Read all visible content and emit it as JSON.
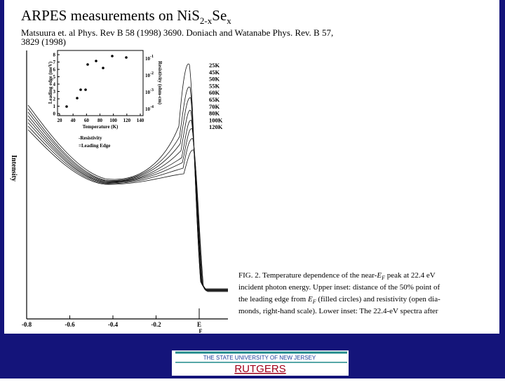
{
  "title": {
    "main": "ARPES measurements on Ni",
    "s": "S",
    "sub1": "2-x",
    "se": "Se",
    "sub2": "x"
  },
  "citation": {
    "lines": [
      "Matsuura et. al Phys. Rev B 58 (1998) 3690. Doniach and Watanabe Phys. Rev. B 57,",
      "3829 (1998)"
    ]
  },
  "figure": {
    "y_label": "Intensity",
    "x_ticks": [
      "-0.8",
      "-0.6",
      "-0.4",
      "-0.2"
    ],
    "ef": {
      "e": "E",
      "f": "F"
    },
    "temperatures": [
      "25K",
      "45K",
      "50K",
      "55K",
      "60K",
      "65K",
      "70K",
      "80K",
      "100K",
      "120K"
    ],
    "inset": {
      "y_label": "Leading edge (meV)",
      "y2_label": "Resistivity (ohm-cm)",
      "x_label": "Temperature (K)",
      "y_ticks": [
        "8",
        "7",
        "6",
        "5",
        "4",
        "3",
        "2",
        "1",
        "0"
      ],
      "x_ticks": [
        "20",
        "40",
        "60",
        "80",
        "100",
        "120",
        "140"
      ],
      "y2_base": "10",
      "y2_exponents": [
        "-1",
        "-2",
        "-3",
        "-4"
      ],
      "legend": [
        "-Resistivity",
        "=Leading Edge"
      ]
    },
    "caption": {
      "l1a": "FIG. 2. Temperature dependence of the near-",
      "l1e": "E",
      "l1f": "F",
      "l1b": " peak at 22.4 eV",
      "l2": "incident photon energy. Upper inset: distance of the 50% point of",
      "l3a": "the leading edge from ",
      "l3e": "E",
      "l3f": "F",
      "l3b": " (filled circles) and resistivity (open dia-",
      "l4": "monds, right-hand scale). Lower inset: The 22.4-eV spectra after"
    }
  },
  "footer": {
    "university": "THE STATE UNIVERSITY OF NEW JERSEY",
    "name": "RUTGERS"
  }
}
